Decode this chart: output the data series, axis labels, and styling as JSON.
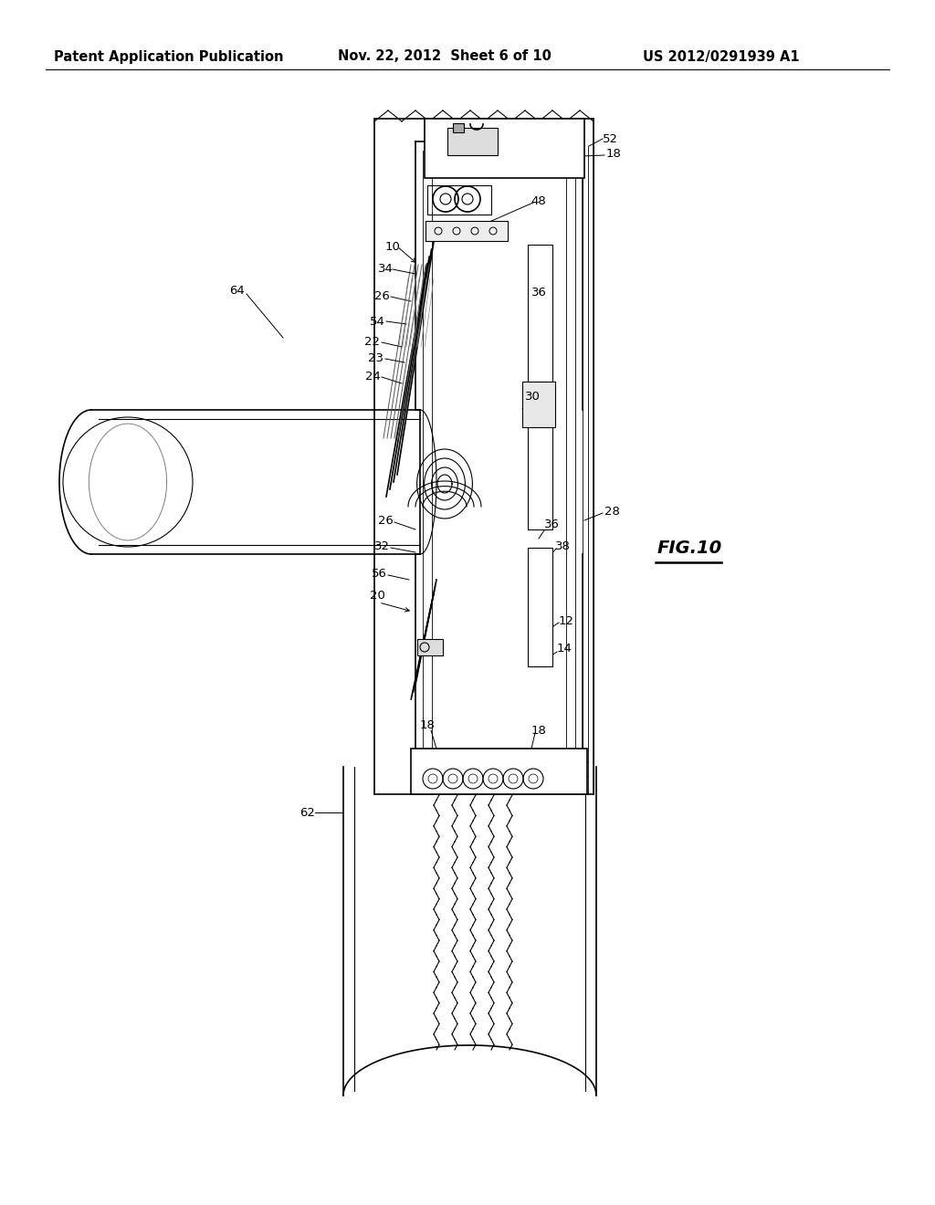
{
  "title_left": "Patent Application Publication",
  "title_mid": "Nov. 22, 2012  Sheet 6 of 10",
  "title_right": "US 2012/0291939 A1",
  "fig_label": "FIG.10",
  "background_color": "#ffffff",
  "line_color": "#000000",
  "header_fontsize": 10.5,
  "label_fontsize": 9.5,
  "fig_label_fontsize": 14
}
